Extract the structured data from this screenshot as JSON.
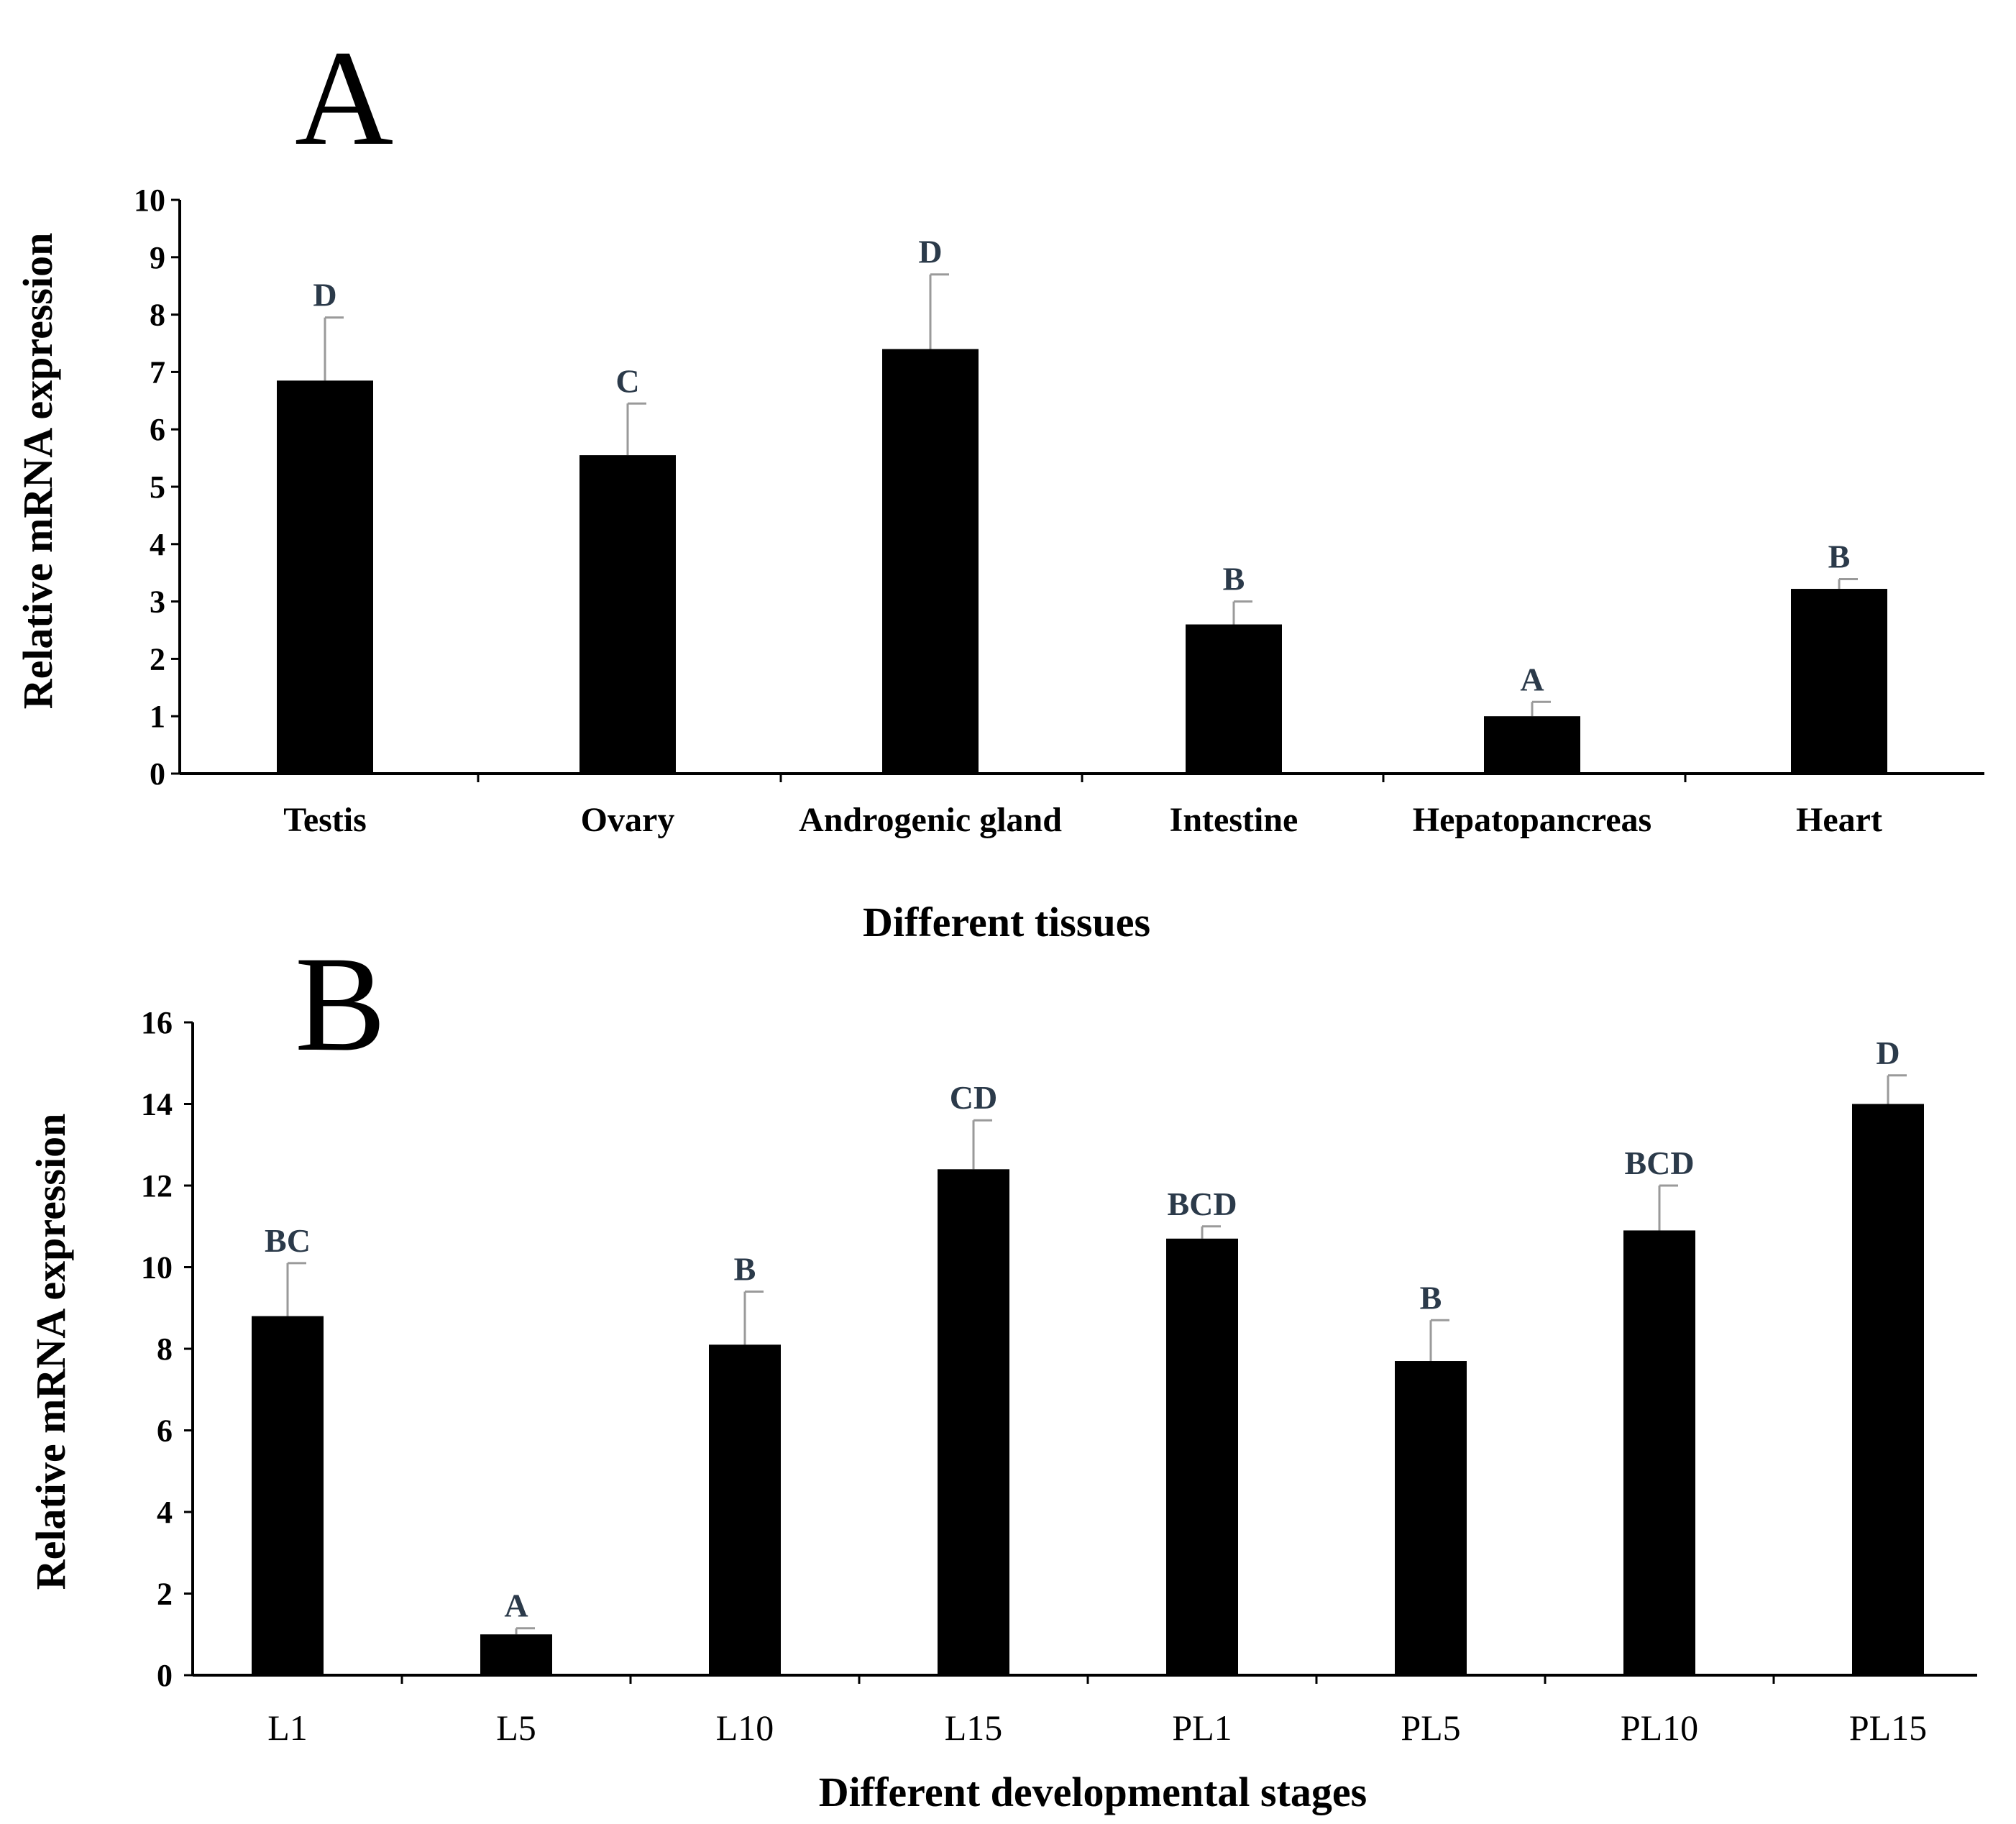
{
  "chart_data": [
    {
      "type": "bar",
      "panel": "A",
      "title": "",
      "categories": [
        "Testis",
        "Ovary",
        "Androgenic gland",
        "Intestine",
        "Hepatopancreas",
        "Heart"
      ],
      "values": [
        6.85,
        5.55,
        7.4,
        2.6,
        1.0,
        3.22
      ],
      "errors": [
        1.1,
        0.9,
        1.3,
        0.4,
        0.25,
        0.17
      ],
      "significance": [
        "D",
        "C",
        "D",
        "B",
        "A",
        "B"
      ],
      "xlabel": "Different tissues",
      "ylabel": "Relative mRNA expression",
      "ylim": [
        0,
        10
      ],
      "yticks": [
        "0",
        "1",
        "2",
        "3",
        "4",
        "5",
        "6",
        "7",
        "8",
        "9",
        "10"
      ],
      "bar_color": "#000000",
      "error_color": "#9a9a9a"
    },
    {
      "type": "bar",
      "panel": "B",
      "title": "",
      "categories": [
        "L1",
        "L5",
        "L10",
        "L15",
        "PL1",
        "PL5",
        "PL10",
        "PL15"
      ],
      "values": [
        8.8,
        1.0,
        8.1,
        12.4,
        10.7,
        7.7,
        10.9,
        14.0
      ],
      "errors": [
        1.3,
        0.15,
        1.3,
        1.2,
        0.3,
        1.0,
        1.1,
        0.7
      ],
      "significance": [
        "BC",
        "A",
        "B",
        "CD",
        "BCD",
        "B",
        "BCD",
        "D"
      ],
      "xlabel": "Different developmental stages",
      "ylabel": "Relative mRNA expression",
      "ylim": [
        0,
        16
      ],
      "yticks": [
        "0",
        "2",
        "4",
        "6",
        "8",
        "10",
        "12",
        "14",
        "16"
      ],
      "bar_color": "#000000",
      "error_color": "#9a9a9a"
    }
  ]
}
